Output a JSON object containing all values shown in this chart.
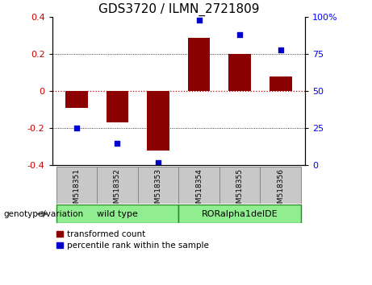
{
  "title": "GDS3720 / ILMN_2721809",
  "samples": [
    "GSM518351",
    "GSM518352",
    "GSM518353",
    "GSM518354",
    "GSM518355",
    "GSM518356"
  ],
  "bar_values": [
    -0.09,
    -0.17,
    -0.32,
    0.29,
    0.2,
    0.08
  ],
  "scatter_percentiles": [
    25,
    15,
    2,
    98,
    88,
    78
  ],
  "ylim": [
    -0.4,
    0.4
  ],
  "y2lim": [
    0,
    100
  ],
  "yticks": [
    -0.4,
    -0.2,
    0.0,
    0.2,
    0.4
  ],
  "y2ticks": [
    0,
    25,
    50,
    75,
    100
  ],
  "bar_color": "#8B0000",
  "scatter_color": "#0000CD",
  "group_label": "genotype/variation",
  "wt_label": "wild type",
  "ro_label": "RORalpha1delDE",
  "legend_bar_label": "transformed count",
  "legend_scatter_label": "percentile rank within the sample",
  "zero_line_color": "#CC0000",
  "background_color": "#FFFFFF",
  "title_fontsize": 11,
  "tick_fontsize": 8,
  "sample_box_color": "#C8C8C8",
  "group_box_color": "#90EE90",
  "group_box_edge": "#228B22"
}
